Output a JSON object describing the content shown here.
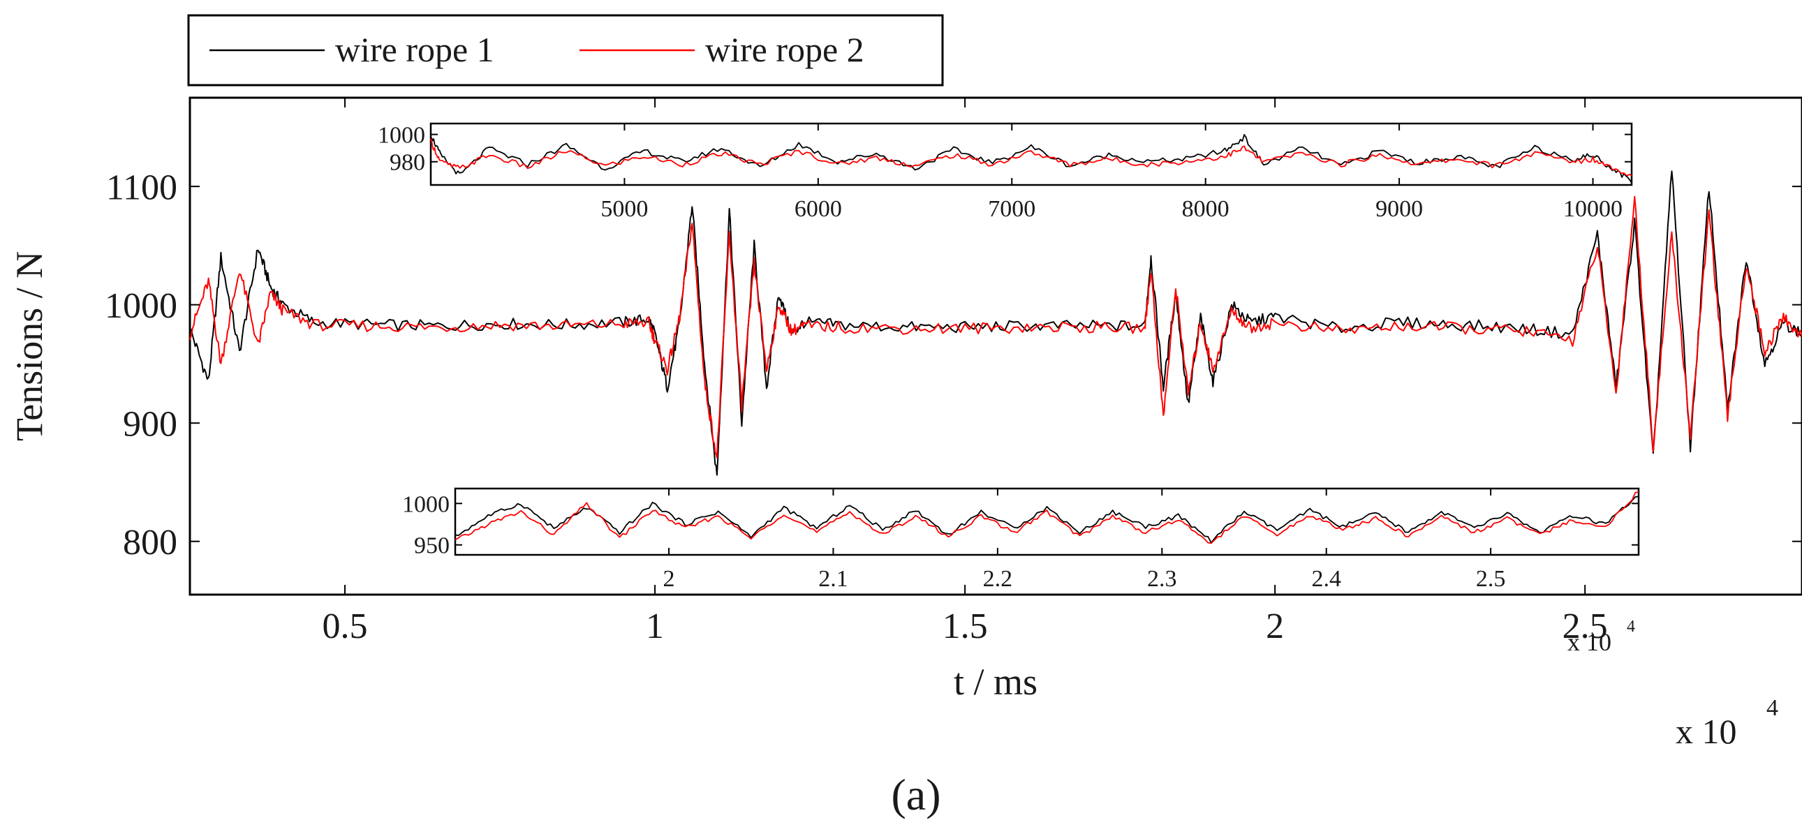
{
  "figure_label": "(a)",
  "chart_data": {
    "type": "line",
    "ylabel": "Tensions / N",
    "xlabel": "t / ms",
    "x_multiplier": "x 10",
    "x_multiplier_exp": "4",
    "xlim": [
      0.25,
      2.85
    ],
    "ylim": [
      755,
      1175
    ],
    "xticks": [
      0.5,
      1,
      1.5,
      2,
      2.5
    ],
    "xtick_labels": [
      "0.5",
      "1",
      "1.5",
      "2",
      "2.5"
    ],
    "yticks": [
      800,
      900,
      1000,
      1100
    ],
    "ytick_labels": [
      "800",
      "900",
      "1000",
      "1100"
    ],
    "grid": false,
    "legend_position": "top-left, outside plot",
    "series": [
      {
        "name": "wire rope 1",
        "color": "#000000",
        "x": [
          0.25,
          0.28,
          0.3,
          0.33,
          0.36,
          0.38,
          0.4,
          0.45,
          0.55,
          0.65,
          0.75,
          0.85,
          0.95,
          0.99,
          1.0,
          1.02,
          1.04,
          1.06,
          1.08,
          1.1,
          1.12,
          1.14,
          1.16,
          1.18,
          1.2,
          1.22,
          1.24,
          1.3,
          1.4,
          1.5,
          1.6,
          1.7,
          1.79,
          1.8,
          1.82,
          1.84,
          1.86,
          1.88,
          1.9,
          1.93,
          1.96,
          2.0,
          2.1,
          2.2,
          2.3,
          2.4,
          2.48,
          2.52,
          2.55,
          2.58,
          2.61,
          2.64,
          2.67,
          2.7,
          2.73,
          2.76,
          2.79,
          2.82,
          2.85
        ],
        "values": [
          980,
          935,
          1040,
          960,
          1048,
          1015,
          1000,
          985,
          983,
          982,
          984,
          983,
          985,
          988,
          975,
          930,
          985,
          1085,
          950,
          855,
          1080,
          900,
          1050,
          930,
          1010,
          975,
          985,
          983,
          981,
          981,
          982,
          982,
          982,
          1040,
          930,
          1010,
          915,
          990,
          935,
          1000,
          985,
          990,
          980,
          985,
          983,
          980,
          975,
          1060,
          930,
          1070,
          870,
          1115,
          880,
          1100,
          910,
          1040,
          950,
          985,
          975
        ]
      },
      {
        "name": "wire rope 2",
        "color": "#ff0000",
        "x": [
          0.25,
          0.28,
          0.3,
          0.33,
          0.36,
          0.38,
          0.4,
          0.45,
          0.55,
          0.65,
          0.75,
          0.85,
          0.95,
          0.99,
          1.0,
          1.02,
          1.04,
          1.06,
          1.08,
          1.1,
          1.12,
          1.14,
          1.16,
          1.18,
          1.2,
          1.22,
          1.24,
          1.3,
          1.4,
          1.5,
          1.6,
          1.7,
          1.79,
          1.8,
          1.82,
          1.84,
          1.86,
          1.88,
          1.9,
          1.93,
          1.96,
          2.0,
          2.1,
          2.2,
          2.3,
          2.4,
          2.48,
          2.52,
          2.55,
          2.58,
          2.61,
          2.64,
          2.67,
          2.7,
          2.73,
          2.76,
          2.79,
          2.82,
          2.85
        ],
        "values": [
          975,
          1020,
          950,
          1030,
          965,
          1010,
          995,
          983,
          982,
          981,
          983,
          982,
          984,
          985,
          970,
          945,
          990,
          1070,
          935,
          870,
          1060,
          915,
          1035,
          945,
          1000,
          978,
          982,
          981,
          980,
          980,
          981,
          981,
          980,
          1030,
          905,
          1015,
          925,
          985,
          945,
          995,
          980,
          985,
          978,
          982,
          980,
          978,
          970,
          1050,
          925,
          1090,
          880,
          1060,
          890,
          1080,
          905,
          1035,
          960,
          990,
          972
        ]
      }
    ],
    "insets": [
      {
        "position": "top",
        "xlim": [
          4000,
          10200
        ],
        "ylim": [
          963,
          1008
        ],
        "xticks": [
          5000,
          6000,
          7000,
          8000,
          9000,
          10000
        ],
        "xtick_labels": [
          "5000",
          "6000",
          "7000",
          "8000",
          "9000",
          "10000"
        ],
        "yticks": [
          980,
          1000
        ],
        "ytick_labels": [
          "980",
          "1000"
        ],
        "series": [
          {
            "name": "wire rope 1",
            "x": [
              4000,
              4050,
              4150,
              4300,
              4500,
              4700,
              4900,
              5100,
              5300,
              5500,
              5700,
              5900,
              6100,
              6300,
              6500,
              6700,
              6900,
              7100,
              7300,
              7500,
              7700,
              7900,
              8100,
              8200,
              8300,
              8500,
              8700,
              8900,
              9100,
              9300,
              9500,
              9700,
              9900,
              10000,
              10100,
              10200
            ],
            "values": [
              1000,
              985,
              970,
              990,
              978,
              992,
              975,
              988,
              980,
              990,
              976,
              993,
              980,
              986,
              975,
              989,
              979,
              991,
              977,
              985,
              980,
              982,
              988,
              998,
              978,
              990,
              977,
              988,
              979,
              984,
              976,
              990,
              982,
              985,
              975,
              966
            ]
          },
          {
            "name": "wire rope 2",
            "x": [
              4000,
              4050,
              4150,
              4300,
              4500,
              4700,
              4900,
              5100,
              5300,
              5500,
              5700,
              5900,
              6100,
              6300,
              6500,
              6700,
              6900,
              7100,
              7300,
              7500,
              7700,
              7900,
              8100,
              8200,
              8300,
              8500,
              8700,
              8900,
              9100,
              9300,
              9500,
              9700,
              9900,
              10000,
              10100,
              10200
            ],
            "values": [
              995,
              980,
              975,
              985,
              976,
              988,
              977,
              984,
              978,
              986,
              978,
              988,
              978,
              983,
              977,
              985,
              978,
              987,
              978,
              982,
              978,
              980,
              984,
              990,
              980,
              986,
              978,
              985,
              978,
              982,
              977,
              986,
              980,
              982,
              976,
              970
            ]
          }
        ]
      },
      {
        "position": "bottom",
        "xlim": [
          18700,
          25900
        ],
        "ylim": [
          938,
          1018
        ],
        "xticks": [
          20000,
          21000,
          22000,
          23000,
          24000,
          25000
        ],
        "xtick_labels": [
          "2",
          "2.1",
          "2.2",
          "2.3",
          "2.4",
          "2.5"
        ],
        "x_multiplier": "x 10",
        "x_multiplier_exp": "4",
        "yticks": [
          950,
          1000
        ],
        "ytick_labels": [
          "950",
          "1000"
        ],
        "series": [
          {
            "name": "wire rope 1",
            "x": [
              18700,
              18900,
              19100,
              19300,
              19500,
              19700,
              19900,
              20100,
              20300,
              20500,
              20700,
              20900,
              21100,
              21300,
              21500,
              21700,
              21900,
              22100,
              22300,
              22500,
              22700,
              22900,
              23100,
              23300,
              23500,
              23700,
              23900,
              24100,
              24300,
              24500,
              24700,
              24900,
              25100,
              25300,
              25500,
              25700,
              25900
            ],
            "values": [
              960,
              985,
              1000,
              970,
              995,
              965,
              1000,
              975,
              990,
              960,
              995,
              970,
              998,
              968,
              992,
              962,
              990,
              970,
              995,
              965,
              990,
              972,
              985,
              955,
              990,
              968,
              992,
              972,
              988,
              965,
              990,
              970,
              988,
              965,
              985,
              975,
              1010
            ]
          },
          {
            "name": "wire rope 2",
            "x": [
              18700,
              18900,
              19100,
              19300,
              19500,
              19700,
              19900,
              20100,
              20300,
              20500,
              20700,
              20900,
              21100,
              21300,
              21500,
              21700,
              21900,
              22100,
              22300,
              22500,
              22700,
              22900,
              23100,
              23300,
              23500,
              23700,
              23900,
              24100,
              24300,
              24500,
              24700,
              24900,
              25100,
              25300,
              25500,
              25700,
              25900
            ],
            "values": [
              955,
              975,
              990,
              962,
              1000,
              958,
              992,
              970,
              985,
              958,
              988,
              965,
              990,
              962,
              985,
              960,
              985,
              965,
              990,
              960,
              985,
              965,
              980,
              952,
              985,
              962,
              986,
              968,
              982,
              960,
              985,
              965,
              982,
              962,
              980,
              972,
              1015
            ]
          }
        ]
      }
    ]
  }
}
